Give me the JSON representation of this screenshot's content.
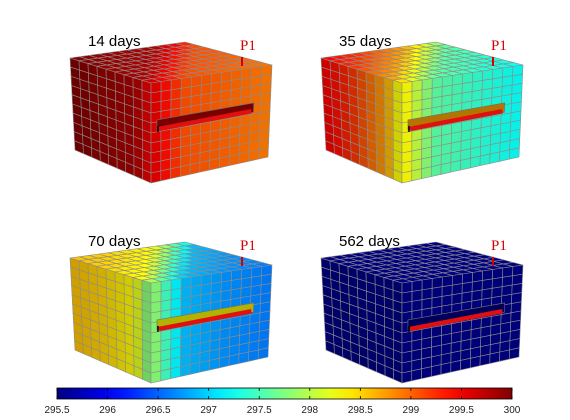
{
  "chart_data": {
    "type": "heatmap",
    "colorbar": {
      "min": 295.5,
      "max": 300,
      "ticks": [
        "295.5",
        "296",
        "296.5",
        "297",
        "297.5",
        "298",
        "298.5",
        "299",
        "299.5",
        "300"
      ],
      "colormap": "jet"
    },
    "probe_label": "P1",
    "panels": [
      {
        "title": "14 days",
        "left_values": [
          300,
          299.9,
          299.8
        ],
        "right_values": [
          299.1,
          299.0,
          298.9
        ],
        "right_front": 298.9
      },
      {
        "title": "35 days",
        "left_values": [
          299.5,
          299.2,
          298.7
        ],
        "right_values": [
          297.6,
          297.4,
          297.2
        ],
        "right_front": 297.4
      },
      {
        "title": "70 days",
        "left_values": [
          298.6,
          298.5,
          298.3
        ],
        "right_values": [
          296.9,
          296.7,
          296.6
        ],
        "right_front": 296.6
      },
      {
        "title": "562 days",
        "left_values": [
          295.5,
          295.5,
          295.5
        ],
        "right_values": [
          295.5,
          295.5,
          295.5
        ],
        "right_front": 295.5
      }
    ]
  }
}
